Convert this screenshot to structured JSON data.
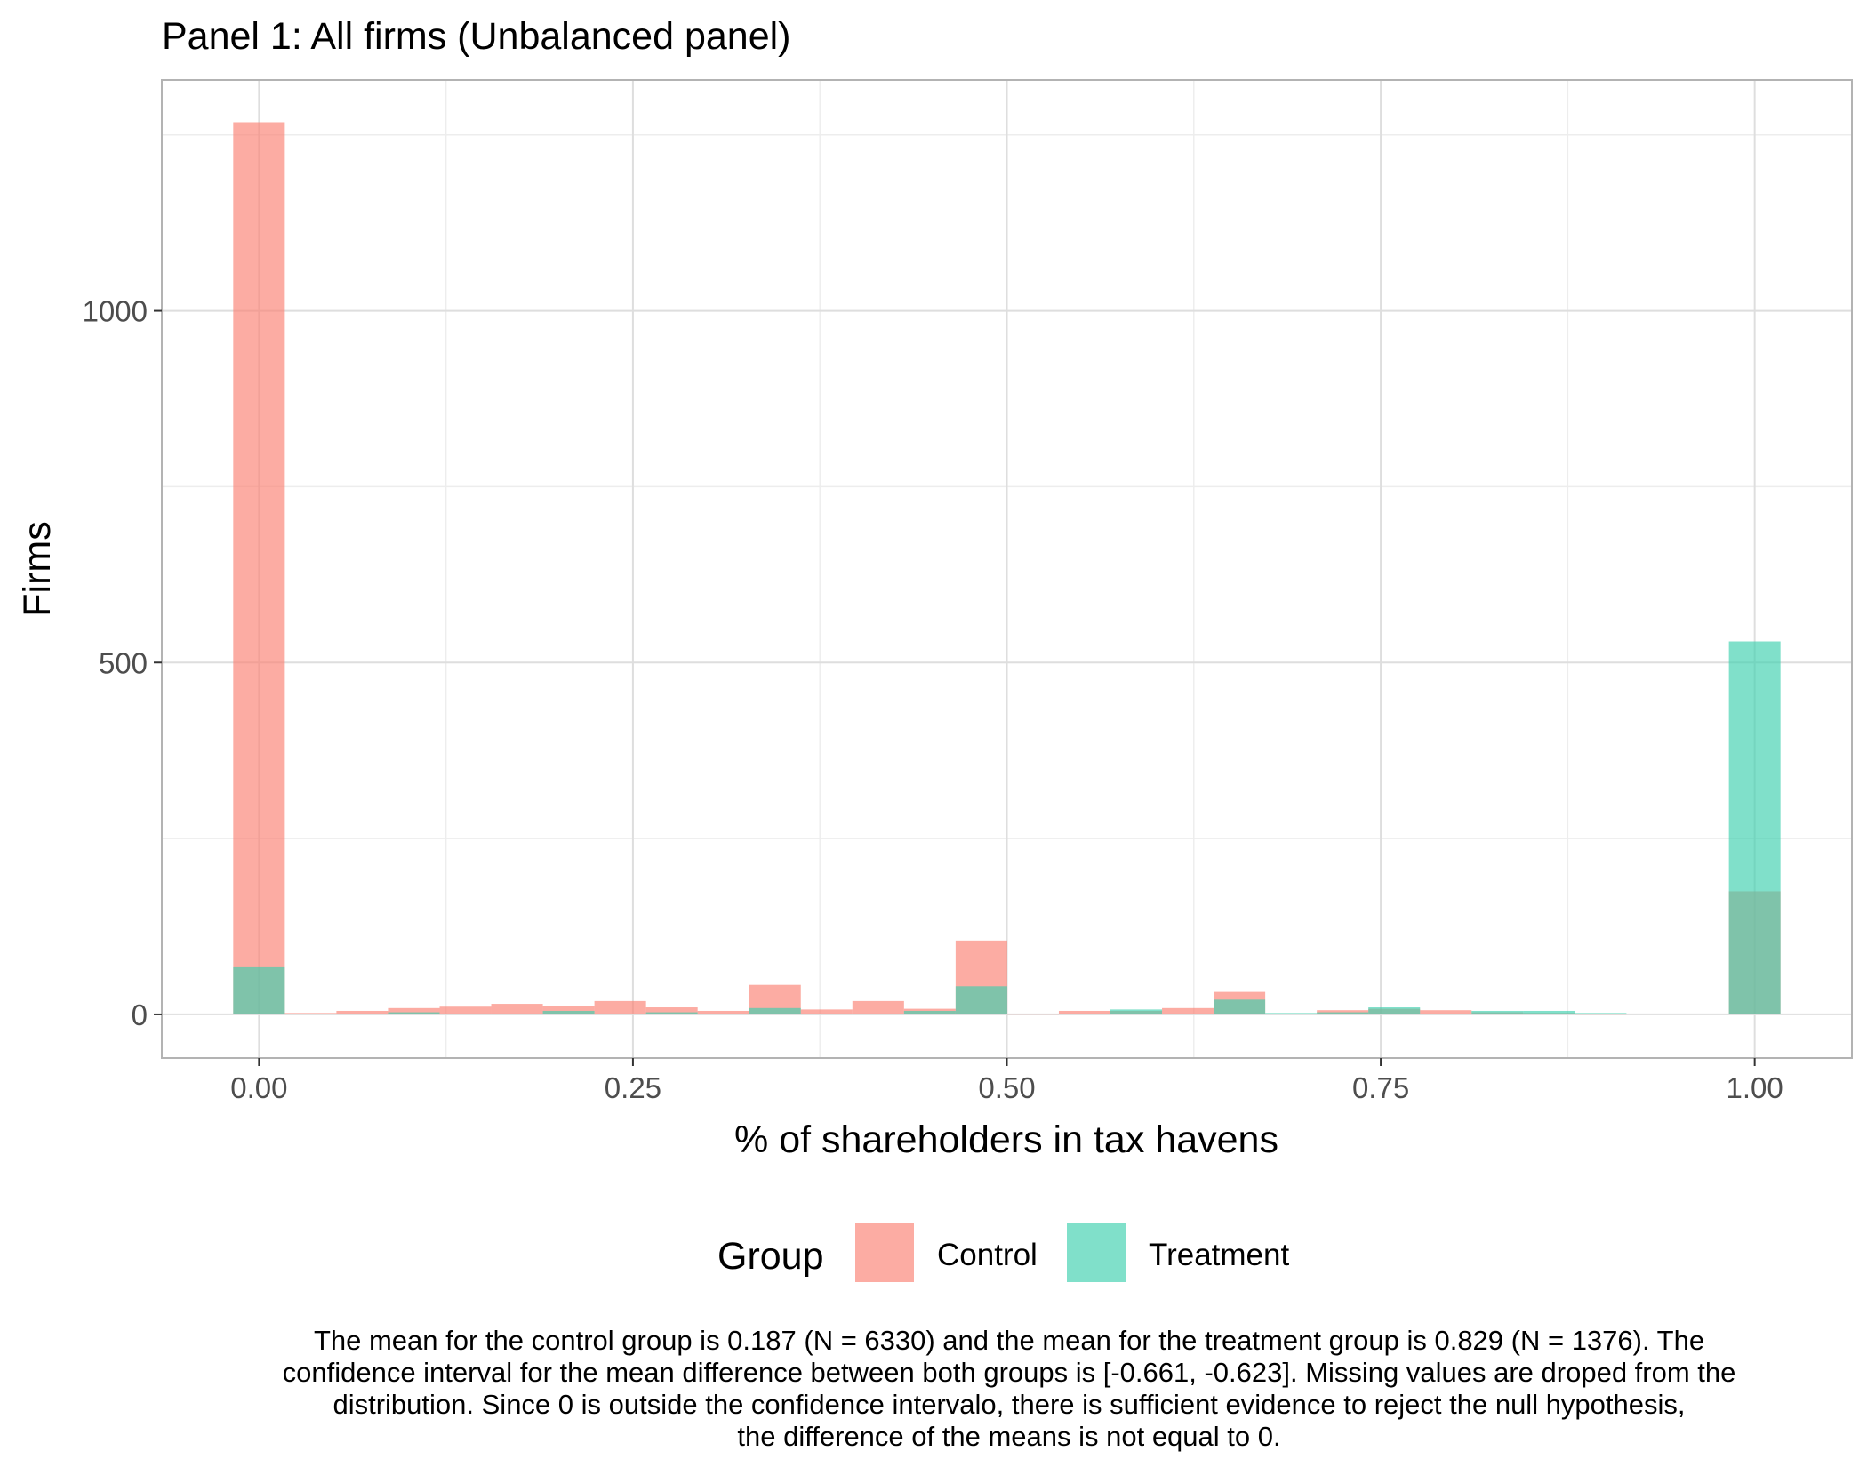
{
  "chart_data": {
    "type": "bar",
    "title": "Panel 1: All firms (Unbalanced panel)",
    "xlabel": "% of shareholders in tax havens",
    "ylabel": "Firms",
    "xlim": [
      -0.065,
      1.065
    ],
    "ylim": [
      -62,
      1328
    ],
    "x_ticks": [
      0.0,
      0.25,
      0.5,
      0.75,
      1.0
    ],
    "x_tick_labels": [
      "0.00",
      "0.25",
      "0.50",
      "0.75",
      "1.00"
    ],
    "y_ticks": [
      0,
      500,
      1000
    ],
    "y_tick_labels": [
      "0",
      "500",
      "1000"
    ],
    "y_minor_ticks": [
      250,
      750,
      1250
    ],
    "bin_width": 0.0345,
    "grid": true,
    "legend": {
      "title": "Group",
      "position": "bottom",
      "entries": [
        "Control",
        "Treatment"
      ]
    },
    "series": [
      {
        "name": "Control",
        "color": "#FA8072",
        "values": [
          {
            "x": 0.0,
            "y": 1268
          },
          {
            "x": 0.0345,
            "y": 2
          },
          {
            "x": 0.069,
            "y": 5
          },
          {
            "x": 0.1035,
            "y": 9
          },
          {
            "x": 0.138,
            "y": 11
          },
          {
            "x": 0.1725,
            "y": 15
          },
          {
            "x": 0.207,
            "y": 12
          },
          {
            "x": 0.2415,
            "y": 19
          },
          {
            "x": 0.276,
            "y": 10
          },
          {
            "x": 0.3105,
            "y": 5
          },
          {
            "x": 0.345,
            "y": 42
          },
          {
            "x": 0.3795,
            "y": 7
          },
          {
            "x": 0.414,
            "y": 19
          },
          {
            "x": 0.4485,
            "y": 8
          },
          {
            "x": 0.483,
            "y": 105
          },
          {
            "x": 0.5175,
            "y": 1
          },
          {
            "x": 0.552,
            "y": 5
          },
          {
            "x": 0.5865,
            "y": 5
          },
          {
            "x": 0.621,
            "y": 9
          },
          {
            "x": 0.6555,
            "y": 32
          },
          {
            "x": 0.69,
            "y": 0
          },
          {
            "x": 0.7245,
            "y": 6
          },
          {
            "x": 0.759,
            "y": 8
          },
          {
            "x": 0.7935,
            "y": 6
          },
          {
            "x": 0.828,
            "y": 3
          },
          {
            "x": 0.8625,
            "y": 2
          },
          {
            "x": 0.897,
            "y": 1
          },
          {
            "x": 0.9315,
            "y": 0
          },
          {
            "x": 0.966,
            "y": 0
          },
          {
            "x": 1.0,
            "y": 175
          }
        ]
      },
      {
        "name": "Treatment",
        "color": "#3CCFAE",
        "values": [
          {
            "x": 0.0,
            "y": 67
          },
          {
            "x": 0.0345,
            "y": 0
          },
          {
            "x": 0.069,
            "y": 0
          },
          {
            "x": 0.1035,
            "y": 3
          },
          {
            "x": 0.138,
            "y": 0
          },
          {
            "x": 0.1725,
            "y": 0
          },
          {
            "x": 0.207,
            "y": 5
          },
          {
            "x": 0.2415,
            "y": 0
          },
          {
            "x": 0.276,
            "y": 3
          },
          {
            "x": 0.3105,
            "y": 0
          },
          {
            "x": 0.345,
            "y": 9
          },
          {
            "x": 0.3795,
            "y": 0
          },
          {
            "x": 0.414,
            "y": 0
          },
          {
            "x": 0.4485,
            "y": 5
          },
          {
            "x": 0.483,
            "y": 40
          },
          {
            "x": 0.5175,
            "y": 0
          },
          {
            "x": 0.552,
            "y": 0
          },
          {
            "x": 0.5865,
            "y": 7
          },
          {
            "x": 0.621,
            "y": 0
          },
          {
            "x": 0.6555,
            "y": 21
          },
          {
            "x": 0.69,
            "y": 2
          },
          {
            "x": 0.7245,
            "y": 3
          },
          {
            "x": 0.759,
            "y": 10
          },
          {
            "x": 0.7935,
            "y": 0
          },
          {
            "x": 0.828,
            "y": 5
          },
          {
            "x": 0.8625,
            "y": 5
          },
          {
            "x": 0.897,
            "y": 2
          },
          {
            "x": 0.9315,
            "y": 0
          },
          {
            "x": 0.966,
            "y": 0
          },
          {
            "x": 1.0,
            "y": 530
          }
        ]
      }
    ],
    "caption_lines": [
      "The mean for the control group is 0.187 (N = 6330) and the mean for the treatment group is 0.829 (N = 1376). The",
      "confidence interval for the mean difference between both groups is [-0.661, -0.623]. Missing values are droped from the",
      "distribution. Since 0 is outside the confidence intervalo, there is sufficient evidence to reject the null hypothesis,",
      "the difference of the means is not equal to 0."
    ]
  }
}
